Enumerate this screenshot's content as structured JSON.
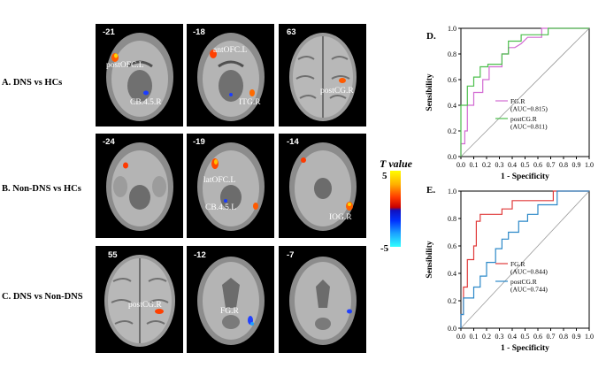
{
  "rows": [
    {
      "label": "A. DNS vs HCs",
      "panels": [
        {
          "slice": "-21",
          "rois": [
            "postOFC.L",
            "CB.4.5.R"
          ]
        },
        {
          "slice": "-18",
          "rois": [
            "antOFC.L",
            "ITG.R"
          ]
        },
        {
          "slice": "63",
          "rois": [
            "postCG.R"
          ]
        }
      ]
    },
    {
      "label": "B. Non-DNS vs HCs",
      "panels": [
        {
          "slice": "-24",
          "rois": []
        },
        {
          "slice": "-19",
          "rois": [
            "latOFC.L",
            "CB.4.5.L"
          ]
        },
        {
          "slice": "-14",
          "rois": [
            "IOG.R"
          ]
        }
      ]
    },
    {
      "label": "C. DNS vs Non-DNS",
      "panels": [
        {
          "slice": "55",
          "rois": [
            "postCG.R"
          ]
        },
        {
          "slice": "-12",
          "rois": [
            "FG.R"
          ]
        },
        {
          "slice": "-7",
          "rois": []
        }
      ]
    }
  ],
  "colorbar": {
    "title": "T value",
    "max": "5",
    "min": "-5"
  },
  "chart_data": [
    {
      "type": "line",
      "panel_label": "D.",
      "xlabel": "1 - Specificity",
      "ylabel": "Sensibility",
      "xlim": [
        0,
        1
      ],
      "ylim": [
        0,
        1
      ],
      "x_ticks": [
        "0.0",
        "0.1",
        "0.2",
        "0.3",
        "0.4",
        "0.5",
        "0.6",
        "0.7",
        "0.8",
        "0.9",
        "1.0"
      ],
      "y_ticks": [
        "0.0",
        "0.2",
        "0.4",
        "0.6",
        "0.8",
        "1.0"
      ],
      "legend_position": "right",
      "series": [
        {
          "name": "FG.R\n(AUC=0.815)",
          "color": "#d26ad2",
          "points": [
            [
              0,
              0
            ],
            [
              0,
              0.1
            ],
            [
              0.03,
              0.1
            ],
            [
              0.03,
              0.2
            ],
            [
              0.05,
              0.2
            ],
            [
              0.05,
              0.4
            ],
            [
              0.1,
              0.4
            ],
            [
              0.1,
              0.5
            ],
            [
              0.17,
              0.5
            ],
            [
              0.17,
              0.6
            ],
            [
              0.22,
              0.6
            ],
            [
              0.22,
              0.7
            ],
            [
              0.32,
              0.7
            ],
            [
              0.32,
              0.8
            ],
            [
              0.37,
              0.8
            ],
            [
              0.37,
              0.85
            ],
            [
              0.42,
              0.85
            ],
            [
              0.47,
              0.88
            ],
            [
              0.52,
              0.93
            ],
            [
              0.63,
              0.93
            ],
            [
              0.63,
              1.0
            ],
            [
              1.0,
              1.0
            ]
          ]
        },
        {
          "name": "postCG.R\n(AUC=0.811)",
          "color": "#4cbf4c",
          "points": [
            [
              0,
              0
            ],
            [
              0,
              0.4
            ],
            [
              0.05,
              0.4
            ],
            [
              0.05,
              0.55
            ],
            [
              0.1,
              0.55
            ],
            [
              0.1,
              0.62
            ],
            [
              0.15,
              0.62
            ],
            [
              0.15,
              0.7
            ],
            [
              0.21,
              0.7
            ],
            [
              0.21,
              0.72
            ],
            [
              0.32,
              0.72
            ],
            [
              0.32,
              0.8
            ],
            [
              0.37,
              0.8
            ],
            [
              0.37,
              0.9
            ],
            [
              0.47,
              0.9
            ],
            [
              0.47,
              0.95
            ],
            [
              0.68,
              0.95
            ],
            [
              0.68,
              1.0
            ],
            [
              1.0,
              1.0
            ]
          ]
        }
      ]
    },
    {
      "type": "line",
      "panel_label": "E.",
      "xlabel": "1 - Specificity",
      "ylabel": "Sensibility",
      "xlim": [
        0,
        1
      ],
      "ylim": [
        0,
        1
      ],
      "x_ticks": [
        "0.0",
        "0.1",
        "0.2",
        "0.3",
        "0.4",
        "0.5",
        "0.6",
        "0.7",
        "0.8",
        "0.9",
        "1.0"
      ],
      "y_ticks": [
        "0.0",
        "0.2",
        "0.4",
        "0.6",
        "0.8",
        "1.0"
      ],
      "legend_position": "right",
      "series": [
        {
          "name": "FG.R\n(AUC=0.844)",
          "color": "#e03a3a",
          "points": [
            [
              0,
              0
            ],
            [
              0,
              0.1
            ],
            [
              0.02,
              0.1
            ],
            [
              0.02,
              0.3
            ],
            [
              0.05,
              0.3
            ],
            [
              0.05,
              0.5
            ],
            [
              0.1,
              0.5
            ],
            [
              0.1,
              0.6
            ],
            [
              0.12,
              0.6
            ],
            [
              0.12,
              0.78
            ],
            [
              0.15,
              0.78
            ],
            [
              0.15,
              0.83
            ],
            [
              0.32,
              0.83
            ],
            [
              0.32,
              0.87
            ],
            [
              0.4,
              0.87
            ],
            [
              0.4,
              0.93
            ],
            [
              0.72,
              0.93
            ],
            [
              0.72,
              1.0
            ],
            [
              1.0,
              1.0
            ]
          ]
        },
        {
          "name": "postCG.R\n(AUC=0.744)",
          "color": "#2b88c8",
          "points": [
            [
              0,
              0
            ],
            [
              0,
              0.1
            ],
            [
              0.02,
              0.1
            ],
            [
              0.02,
              0.22
            ],
            [
              0.1,
              0.22
            ],
            [
              0.1,
              0.3
            ],
            [
              0.15,
              0.3
            ],
            [
              0.15,
              0.38
            ],
            [
              0.2,
              0.38
            ],
            [
              0.2,
              0.48
            ],
            [
              0.27,
              0.48
            ],
            [
              0.27,
              0.58
            ],
            [
              0.32,
              0.58
            ],
            [
              0.32,
              0.65
            ],
            [
              0.37,
              0.65
            ],
            [
              0.37,
              0.7
            ],
            [
              0.45,
              0.7
            ],
            [
              0.45,
              0.78
            ],
            [
              0.52,
              0.78
            ],
            [
              0.52,
              0.83
            ],
            [
              0.6,
              0.83
            ],
            [
              0.6,
              0.9
            ],
            [
              0.75,
              0.9
            ],
            [
              0.75,
              1.0
            ],
            [
              1.0,
              1.0
            ]
          ]
        }
      ]
    }
  ]
}
